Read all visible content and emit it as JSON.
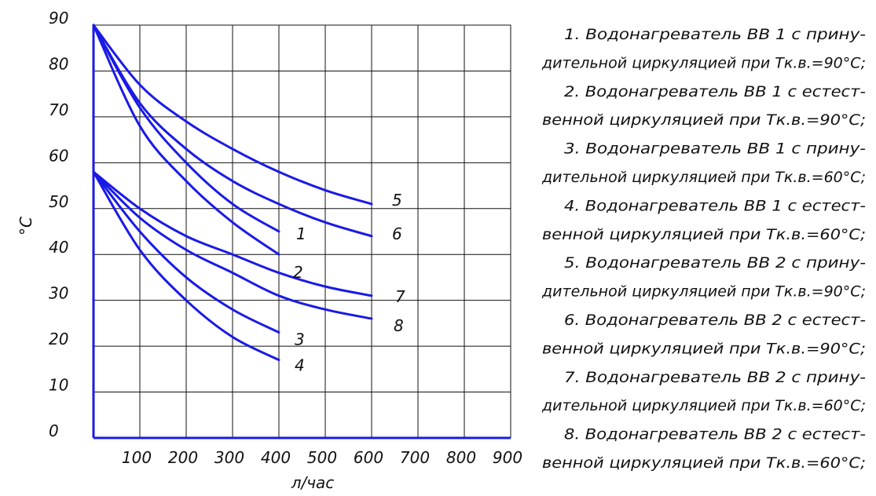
{
  "chart_data": {
    "type": "line",
    "title": "",
    "xlabel": "л/час",
    "ylabel": "°С",
    "xlim": [
      0,
      900
    ],
    "ylim": [
      0,
      90
    ],
    "grid": true,
    "x_ticks": [
      "100",
      "200",
      "300",
      "400",
      "500",
      "600",
      "700",
      "800",
      "900"
    ],
    "y_ticks": [
      "0",
      "10",
      "20",
      "30",
      "40",
      "50",
      "60",
      "70",
      "80",
      "90"
    ],
    "line_color": "#1a1ae6",
    "series": [
      {
        "label": "1",
        "x": [
          0,
          100,
          200,
          300,
          400
        ],
        "y": [
          90,
          72,
          60,
          51,
          45
        ]
      },
      {
        "label": "2",
        "x": [
          0,
          100,
          200,
          300,
          400
        ],
        "y": [
          90,
          68,
          56,
          47,
          40
        ]
      },
      {
        "label": "3",
        "x": [
          0,
          100,
          200,
          300,
          400
        ],
        "y": [
          58,
          45,
          35,
          28,
          23
        ]
      },
      {
        "label": "4",
        "x": [
          0,
          100,
          200,
          300,
          400
        ],
        "y": [
          58,
          41,
          30,
          22,
          17
        ]
      },
      {
        "label": "5",
        "x": [
          0,
          100,
          200,
          300,
          400,
          500,
          600
        ],
        "y": [
          90,
          77,
          69,
          63,
          58,
          54,
          51
        ]
      },
      {
        "label": "6",
        "x": [
          0,
          100,
          200,
          300,
          400,
          500,
          600
        ],
        "y": [
          90,
          73,
          63,
          56,
          51,
          47,
          44
        ]
      },
      {
        "label": "7",
        "x": [
          0,
          100,
          200,
          300,
          400,
          500,
          600
        ],
        "y": [
          58,
          50,
          44,
          40,
          36,
          33,
          31
        ]
      },
      {
        "label": "8",
        "x": [
          0,
          100,
          200,
          300,
          400,
          500,
          600
        ],
        "y": [
          58,
          48,
          41,
          36,
          31,
          28,
          26
        ]
      }
    ],
    "legend": [
      "1. Водонагреватель ВВ 1 с прину-",
      "дительной циркуляцией при Тк.в.=90°С;",
      "2. Водонагреватель ВВ 1 с естест-",
      "венной циркуляцией при Тк.в.=90°С;",
      "3. Водонагреватель ВВ 1 с прину-",
      "дительной циркуляцией при Тк.в.=60°С;",
      "4. Водонагреватель ВВ 1 с естест-",
      "венной циркуляцией при Тк.в.=60°С;",
      "5. Водонагреватель ВВ 2 с прину-",
      "дительной циркуляцией при Тк.в.=90°С;",
      "6. Водонагреватель ВВ 2 с естест-",
      "венной циркуляцией при Тк.в.=90°С;",
      "7. Водонагреватель ВВ 2 с прину-",
      "дительной циркуляцией при Тк.в.=60°С;",
      "8. Водонагреватель ВВ 2 с естест-",
      "венной циркуляцией при Тк.в.=60°С;"
    ]
  }
}
